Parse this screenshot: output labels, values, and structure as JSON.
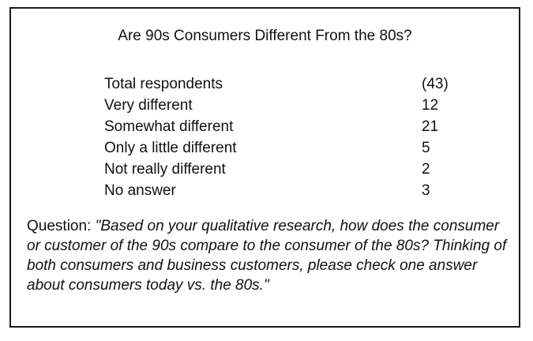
{
  "title": "Are 90s Consumers Different From the 80s?",
  "rows": [
    {
      "label": "Total respondents",
      "value": "(43)"
    },
    {
      "label": "Very different",
      "value": "12"
    },
    {
      "label": "Somewhat different",
      "value": "21"
    },
    {
      "label": "Only a little different",
      "value": "5"
    },
    {
      "label": "Not really different",
      "value": "2"
    },
    {
      "label": "No answer",
      "value": "3"
    }
  ],
  "question": {
    "prefix": "Question: ",
    "text": "\"Based on your qualitative research, how does the consumer or customer of the 90s compare to the consumer of the 80s? Thinking of both consumers and business customers, please check one answer about consumers today vs. the 80s.\""
  }
}
